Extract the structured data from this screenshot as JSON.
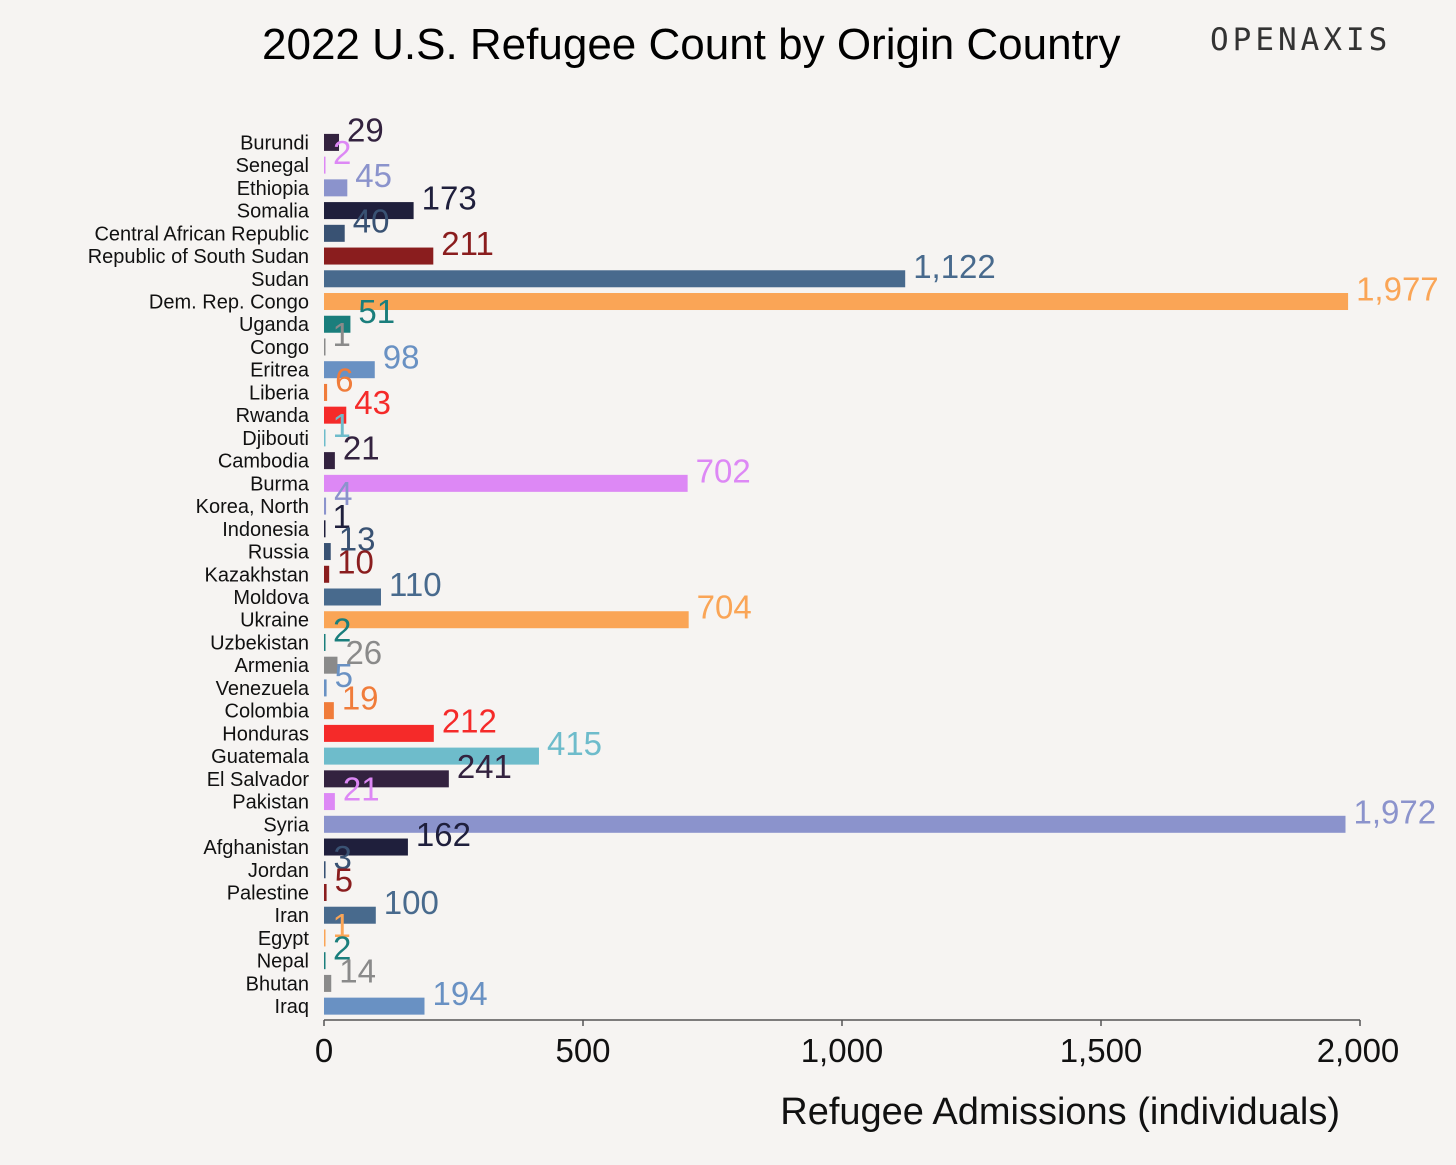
{
  "header": {
    "title": "2022 U.S. Refugee Count by Origin Country",
    "brand": "OPENAXIS"
  },
  "chart_data": {
    "type": "bar",
    "orientation": "horizontal",
    "title": "2022 U.S. Refugee Count by Origin Country",
    "xlabel": "Refugee Admissions (individuals)",
    "ylabel": "",
    "xlim": [
      0,
      2000
    ],
    "x_ticks": [
      0,
      500,
      1000,
      1500,
      2000
    ],
    "x_tick_labels": [
      "0",
      "500",
      "1,000",
      "1,500",
      "2,000"
    ],
    "grid": false,
    "categories": [
      "Burundi",
      "Senegal",
      "Ethiopia",
      "Somalia",
      "Central African Republic",
      "Republic of South Sudan",
      "Sudan",
      "Dem. Rep. Congo",
      "Uganda",
      "Congo",
      "Eritrea",
      "Liberia",
      "Rwanda",
      "Djibouti",
      "Cambodia",
      "Burma",
      "Korea, North",
      "Indonesia",
      "Russia",
      "Kazakhstan",
      "Moldova",
      "Ukraine",
      "Uzbekistan",
      "Armenia",
      "Venezuela",
      "Colombia",
      "Honduras",
      "Guatemala",
      "El Salvador",
      "Pakistan",
      "Syria",
      "Afghanistan",
      "Jordan",
      "Palestine",
      "Iran",
      "Egypt",
      "Nepal",
      "Bhutan",
      "Iraq"
    ],
    "values": [
      29,
      2,
      45,
      173,
      40,
      211,
      1122,
      1977,
      51,
      1,
      98,
      6,
      43,
      1,
      21,
      702,
      4,
      1,
      13,
      10,
      110,
      704,
      2,
      26,
      5,
      19,
      212,
      415,
      241,
      21,
      1972,
      162,
      3,
      5,
      100,
      1,
      2,
      14,
      194
    ],
    "value_labels": [
      "29",
      "2",
      "45",
      "173",
      "40",
      "211",
      "1,122",
      "1,977",
      "51",
      "1",
      "98",
      "6",
      "43",
      "1",
      "21",
      "702",
      "4",
      "1",
      "13",
      "10",
      "110",
      "704",
      "2",
      "26",
      "5",
      "19",
      "212",
      "415",
      "241",
      "21",
      "1,972",
      "162",
      "3",
      "5",
      "100",
      "1",
      "2",
      "14",
      "194"
    ],
    "colors": [
      "#33223f",
      "#dd88f5",
      "#8b93cc",
      "#1f1f3c",
      "#395273",
      "#8a1d1e",
      "#486a8d",
      "#faa556",
      "#1a7e7c",
      "#8a8a8a",
      "#6991c3",
      "#f07c3a",
      "#f52a29",
      "#6ebccb",
      "#33223f",
      "#dd88f5",
      "#8b93cc",
      "#1f1f3c",
      "#395273",
      "#8a1d1e",
      "#486a8d",
      "#faa556",
      "#1a7e7c",
      "#8a8a8a",
      "#6991c3",
      "#f07c3a",
      "#f52a29",
      "#6ebccb",
      "#33223f",
      "#dd88f5",
      "#8b93cc",
      "#1f1f3c",
      "#395273",
      "#8a1d1e",
      "#486a8d",
      "#faa556",
      "#1a7e7c",
      "#8a8a8a",
      "#6991c3"
    ],
    "axis_color": "#555555"
  }
}
